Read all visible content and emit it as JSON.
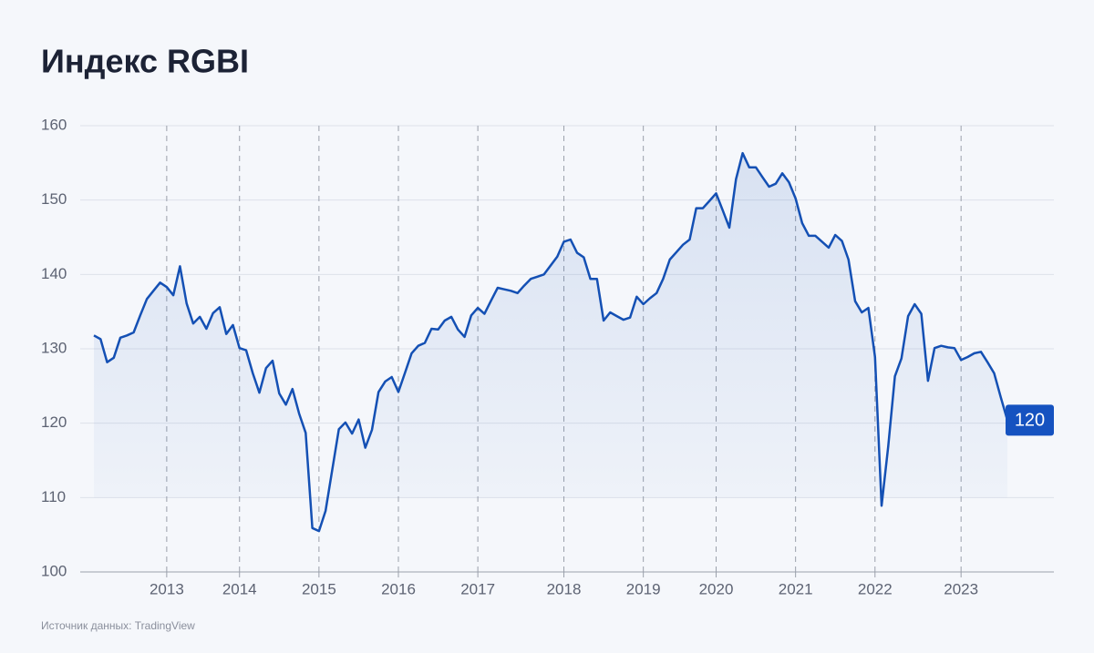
{
  "chart_data": {
    "type": "line",
    "title": "Индекс RGBI",
    "source": "Источник данных: TradingView",
    "categories": [
      null,
      null,
      null,
      null,
      null,
      null,
      null,
      null,
      null,
      null,
      null,
      "2013",
      null,
      null,
      null,
      null,
      null,
      null,
      null,
      null,
      null,
      null,
      "2014",
      null,
      null,
      null,
      null,
      null,
      null,
      null,
      null,
      null,
      null,
      null,
      "2015",
      null,
      null,
      null,
      null,
      null,
      null,
      null,
      null,
      null,
      null,
      null,
      "2016",
      null,
      null,
      null,
      null,
      null,
      null,
      null,
      null,
      null,
      null,
      null,
      "2017",
      null,
      null,
      null,
      null,
      null,
      null,
      null,
      null,
      null,
      null,
      null,
      null,
      "2018",
      null,
      null,
      null,
      null,
      null,
      null,
      null,
      null,
      null,
      null,
      null,
      "2019",
      null,
      null,
      null,
      null,
      null,
      null,
      null,
      null,
      null,
      null,
      "2020",
      null,
      null,
      null,
      null,
      null,
      null,
      null,
      null,
      null,
      null,
      null,
      "2021",
      null,
      null,
      null,
      null,
      null,
      null,
      null,
      null,
      null,
      null,
      null,
      "2022",
      null,
      null,
      null,
      null,
      null,
      null,
      null,
      null,
      null,
      null,
      null,
      null,
      "2023",
      null,
      null,
      null,
      null,
      null,
      null,
      null
    ],
    "values": [
      131.8,
      131.3,
      128.2,
      128.8,
      131.5,
      131.8,
      132.2,
      134.5,
      136.7,
      137.8,
      138.9,
      138.3,
      137.2,
      141.1,
      136.1,
      133.4,
      134.3,
      132.7,
      134.8,
      135.6,
      132,
      133.2,
      130.1,
      129.8,
      126.7,
      124.1,
      127.4,
      128.4,
      124,
      122.5,
      124.6,
      121.3,
      118.7,
      105.9,
      105.5,
      108.2,
      113.7,
      119.2,
      120.1,
      118.6,
      120.5,
      116.7,
      119.1,
      124.2,
      125.6,
      126.2,
      124.2,
      126.8,
      129.4,
      130.4,
      130.8,
      132.7,
      132.6,
      133.8,
      134.3,
      132.6,
      131.6,
      134.5,
      135.5,
      134.7,
      136.5,
      138.2,
      138,
      137.8,
      137.5,
      138.5,
      139.4,
      139.7,
      140,
      141.2,
      142.4,
      144.4,
      144.7,
      142.9,
      142.3,
      139.4,
      139.4,
      133.8,
      134.9,
      134.4,
      133.9,
      134.2,
      137,
      136,
      136.8,
      137.5,
      139.4,
      142,
      143,
      144,
      144.7,
      148.9,
      148.9,
      149.9,
      150.9,
      148.6,
      146.3,
      152.8,
      156.3,
      154.4,
      154.4,
      153.1,
      151.8,
      152.2,
      153.6,
      152.4,
      150.2,
      146.9,
      145.2,
      145.2,
      144.4,
      143.6,
      145.3,
      144.5,
      142,
      136.4,
      134.9,
      135.5,
      128.9,
      108.9,
      116.9,
      126.3,
      128.7,
      134.4,
      136,
      134.7,
      125.7,
      130.1,
      130.4,
      130.2,
      130.1,
      128.5,
      128.9,
      129.4,
      129.6,
      128.2,
      126.7,
      123.5,
      120.4
    ],
    "value_labels": [
      null,
      null,
      null,
      null,
      null,
      null,
      null,
      null,
      null,
      null,
      null,
      null,
      null,
      null,
      null,
      null,
      null,
      null,
      null,
      null,
      null,
      null,
      null,
      null,
      null,
      null,
      null,
      null,
      null,
      null,
      null,
      null,
      null,
      null,
      null,
      null,
      null,
      null,
      null,
      null,
      null,
      null,
      null,
      null,
      null,
      null,
      null,
      null,
      null,
      null,
      null,
      null,
      null,
      null,
      null,
      null,
      null,
      null,
      null,
      null,
      null,
      null,
      null,
      null,
      null,
      null,
      null,
      null,
      null,
      null,
      null,
      null,
      null,
      null,
      null,
      null,
      null,
      null,
      null,
      null,
      null,
      null,
      null,
      null,
      null,
      null,
      null,
      null,
      null,
      null,
      null,
      null,
      null,
      null,
      null,
      null,
      null,
      null,
      null,
      null,
      null,
      null,
      null,
      null,
      null,
      null,
      null,
      null,
      null,
      null,
      null,
      null,
      null,
      null,
      null,
      null,
      null,
      null,
      null,
      null,
      null,
      null,
      null,
      null,
      null,
      null,
      null,
      null,
      null,
      null,
      null,
      null,
      null,
      null,
      null,
      null,
      null,
      null,
      "120"
    ],
    "color": "#1450b4",
    "ylim": [
      100,
      160
    ],
    "yticks": [
      100,
      110,
      120,
      130,
      140,
      150,
      160
    ],
    "grid": true
  }
}
